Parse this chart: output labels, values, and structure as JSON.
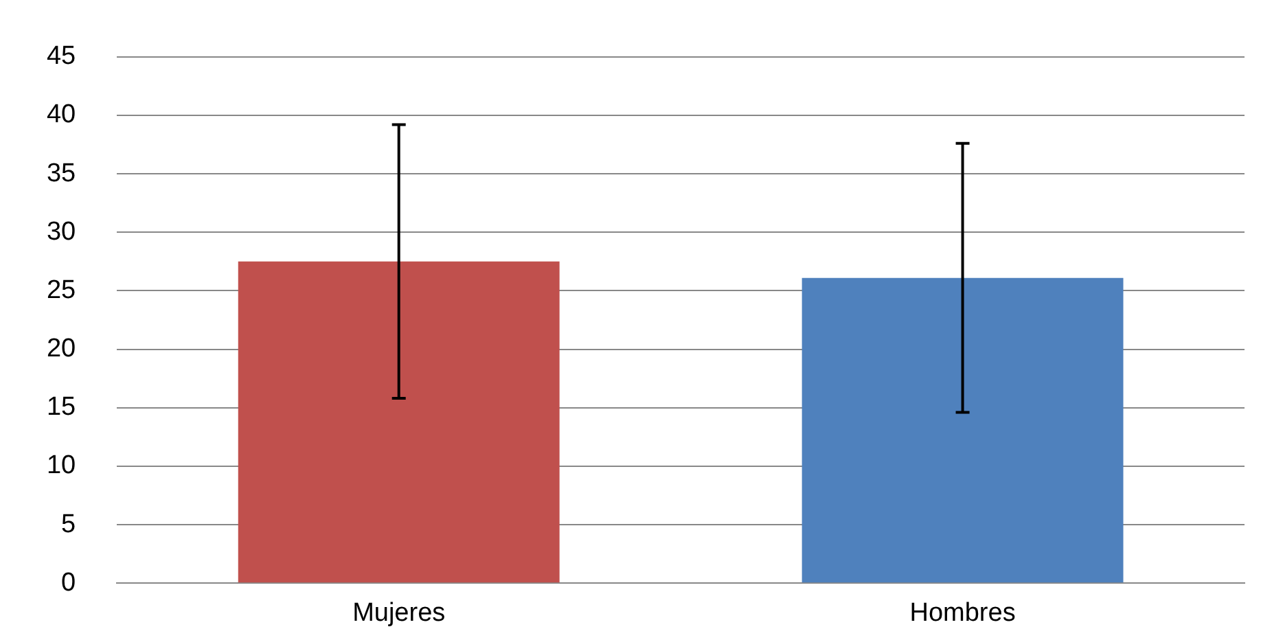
{
  "chart_data": {
    "type": "bar",
    "categories": [
      "Mujeres",
      "Hombres"
    ],
    "values": [
      27.5,
      26.1
    ],
    "colors": [
      "#c0504d",
      "#4f81bd"
    ],
    "errors": [
      11.7,
      11.5
    ],
    "ylim": [
      0,
      45
    ],
    "yticks": [
      0,
      5,
      10,
      15,
      20,
      25,
      30,
      35,
      40,
      45
    ],
    "grid": "y",
    "legend": false
  }
}
